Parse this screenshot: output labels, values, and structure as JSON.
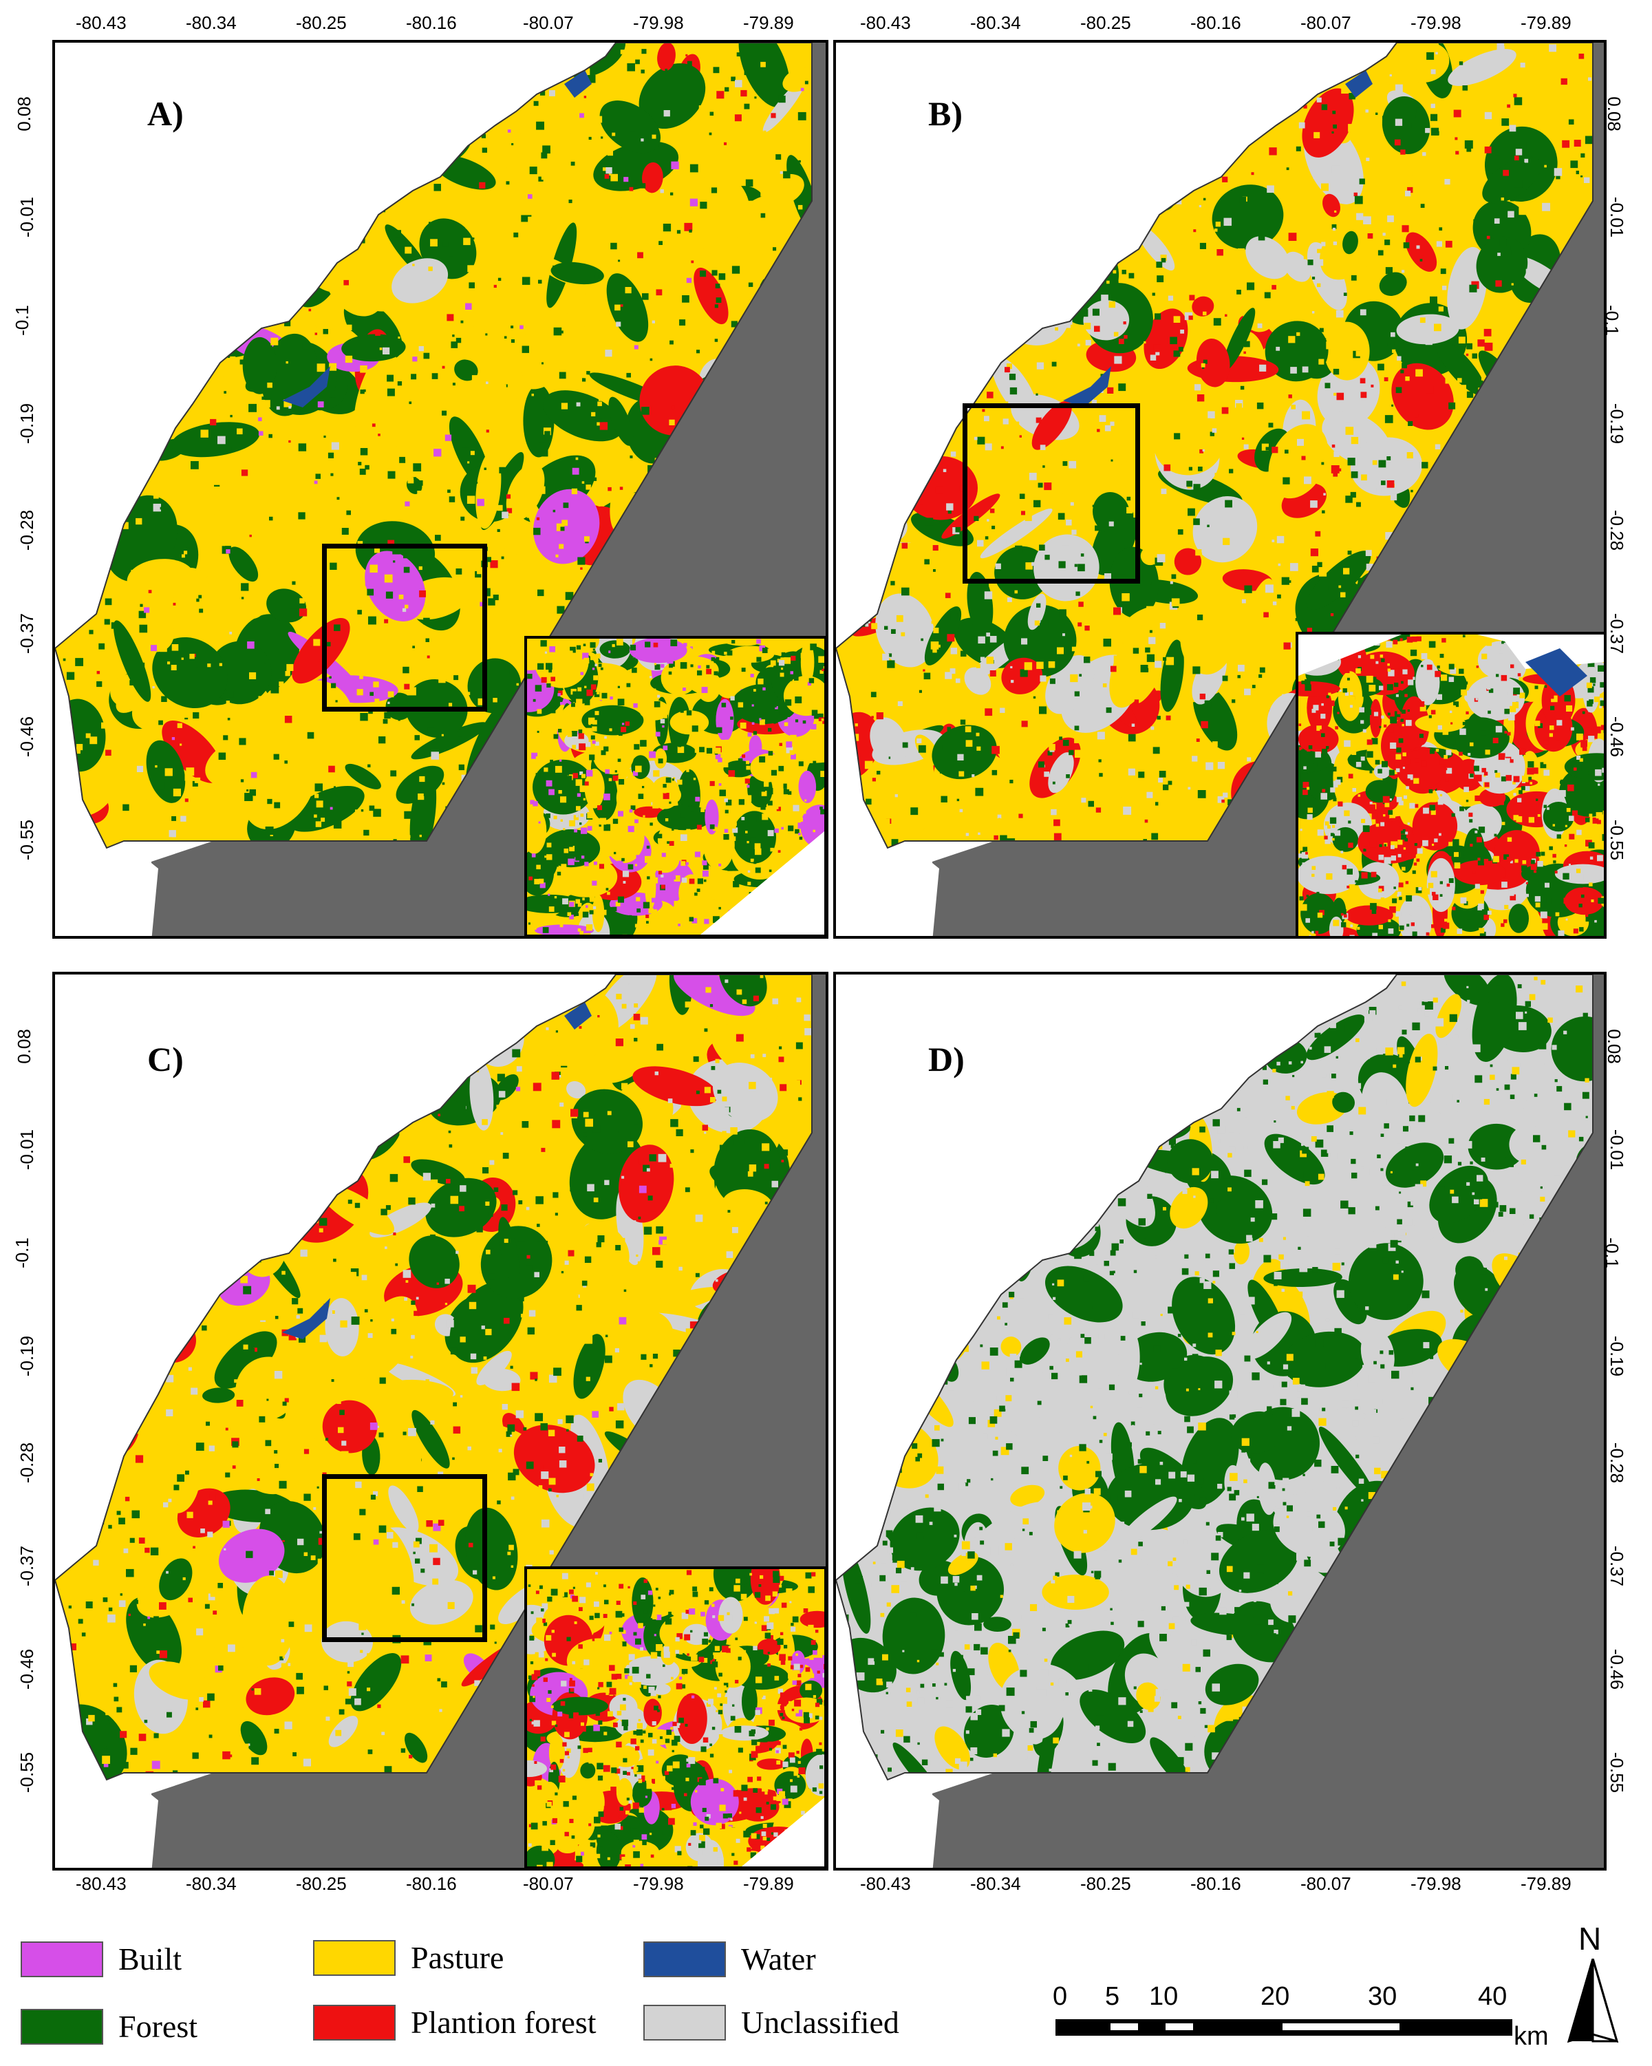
{
  "panels": [
    {
      "label": "A)",
      "id": "a",
      "show_inset": true
    },
    {
      "label": "B)",
      "id": "b",
      "show_inset": true
    },
    {
      "label": "C)",
      "id": "c",
      "show_inset": true
    },
    {
      "label": "D)",
      "id": "d",
      "show_inset": false
    }
  ],
  "top_ticks": {
    "a": [
      "-80.43",
      "-80.34",
      "-80.25",
      "-80.16",
      "-80.07",
      "-79.98",
      "-79.89"
    ],
    "b": [
      "-80.43",
      "-80.34",
      "-80.25",
      "-80.16",
      "-80.07",
      "-79.98",
      "-79.89"
    ]
  },
  "bottom_ticks": {
    "c": [
      "-80.43",
      "-80.34",
      "-80.25",
      "-80.16",
      "-80.07",
      "-79.98",
      "-79.89"
    ],
    "d": [
      "-80.43",
      "-80.34",
      "-80.25",
      "-80.16",
      "-80.07",
      "-79.98",
      "-79.89"
    ]
  },
  "lat_ticks": [
    "0.08",
    "-0.01",
    "-0.1",
    "-0.19",
    "-0.28",
    "-0.37",
    "-0.46",
    "-0.55"
  ],
  "legend": [
    {
      "label": "Built",
      "color": "#d64fe8"
    },
    {
      "label": "Pasture",
      "color": "#ffd700"
    },
    {
      "label": "Water",
      "color": "#1f4e9c"
    },
    {
      "label": "Forest",
      "color": "#0a6b0a"
    },
    {
      "label": "Plantion forest",
      "color": "#ee1111"
    },
    {
      "label": "Unclassified",
      "color": "#d3d3d3"
    }
  ],
  "scale_bar": {
    "labels": [
      "0",
      "5",
      "10",
      "20",
      "30",
      "40"
    ],
    "unit": "km"
  },
  "north_arrow": {
    "label": "N",
    "icon": "north-arrow-icon"
  },
  "colors": {
    "ocean": "#666666",
    "forest": "#0a6b0a",
    "pasture": "#ffd700",
    "plantation": "#ee1111",
    "built": "#d64fe8",
    "water": "#1f4e9c",
    "unclassified": "#d3d3d3"
  }
}
